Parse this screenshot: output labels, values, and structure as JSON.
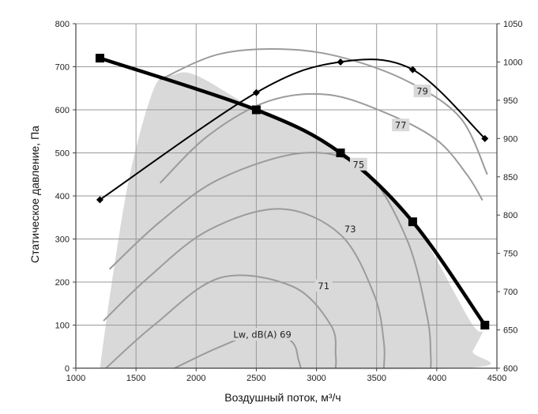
{
  "chart_data": {
    "type": "line",
    "xlabel": "Воздушный поток, м³/ч",
    "ylabel": "Статическое давление, Па",
    "xlim": [
      1000,
      4500
    ],
    "ylim": [
      0,
      800
    ],
    "y2lim": [
      600,
      1050
    ],
    "x_ticks": [
      "1000",
      "1500",
      "2000",
      "2500",
      "3000",
      "3500",
      "4000",
      "4500"
    ],
    "y_ticks": [
      "0",
      "100",
      "200",
      "300",
      "400",
      "500",
      "600",
      "700",
      "800"
    ],
    "y2_ticks": [
      "600",
      "650",
      "700",
      "750",
      "800",
      "850",
      "900",
      "950",
      "1000",
      "1050"
    ],
    "grid": true,
    "shaded_region": {
      "x": [
        1200,
        1300,
        1450,
        1650,
        1800,
        2000,
        2500,
        3200,
        3800,
        4300,
        4400,
        4300,
        4200,
        1200
      ],
      "y": [
        0,
        200,
        450,
        650,
        680,
        680,
        600,
        500,
        340,
        100,
        100,
        40,
        0,
        0
      ]
    },
    "series": [
      {
        "name": "",
        "axis": "left",
        "style": "thick",
        "x": [
          1200,
          2500,
          3200,
          3800,
          4400
        ],
        "y": [
          720,
          600,
          500,
          340,
          100
        ]
      },
      {
        "name": "",
        "axis": "right",
        "style": "thin",
        "x": [
          1200,
          2500,
          3200,
          3800,
          4400
        ],
        "y": [
          820,
          960,
          1000,
          990,
          900
        ]
      }
    ],
    "sound_curves": [
      {
        "label": "Lw, dB(A) 69",
        "label_pos": [
          2550,
          77
        ],
        "x": [
          1820,
          2200,
          2600,
          2800,
          2850,
          2870
        ],
        "y": [
          0,
          50,
          90,
          60,
          20,
          0
        ]
      },
      {
        "label": "71",
        "label_pos": [
          3060,
          190
        ],
        "x": [
          1250,
          1650,
          2200,
          2800,
          3120,
          3160,
          3160
        ],
        "y": [
          0,
          100,
          210,
          190,
          100,
          30,
          0
        ]
      },
      {
        "label": "73",
        "label_pos": [
          3280,
          322
        ],
        "x": [
          1230,
          1600,
          2100,
          2700,
          3200,
          3480,
          3560,
          3560
        ],
        "y": [
          110,
          210,
          320,
          370,
          310,
          170,
          60,
          0
        ]
      },
      {
        "label": "75",
        "label_pos": [
          3350,
          472
        ],
        "x": [
          1280,
          1700,
          2200,
          2900,
          3400,
          3750,
          3920,
          3950,
          3950
        ],
        "y": [
          230,
          340,
          440,
          500,
          460,
          300,
          120,
          30,
          0
        ]
      },
      {
        "label": "77",
        "label_pos": [
          3700,
          563
        ],
        "x": [
          1700,
          2100,
          2600,
          3100,
          3600,
          4000,
          4250,
          4380
        ],
        "y": [
          430,
          540,
          620,
          635,
          590,
          530,
          450,
          390
        ]
      },
      {
        "label": "79",
        "label_pos": [
          3880,
          642
        ],
        "x": [
          1700,
          2200,
          2800,
          3300,
          3800,
          4200,
          4420
        ],
        "y": [
          670,
          730,
          740,
          715,
          660,
          580,
          450
        ]
      }
    ]
  }
}
